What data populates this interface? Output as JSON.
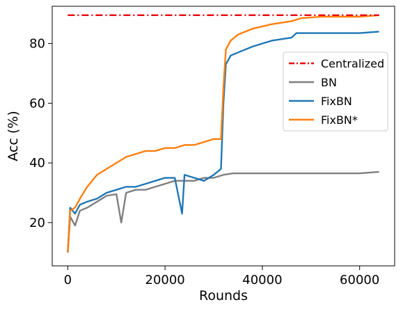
{
  "chart_data": {
    "type": "line",
    "xlabel": "Rounds",
    "ylabel": "Acc (%)",
    "xlim": [
      -3200,
      67200
    ],
    "ylim": [
      5.5,
      92.5
    ],
    "xticks": [
      0,
      20000,
      40000,
      60000
    ],
    "yticks": [
      20,
      40,
      60,
      80
    ],
    "grid": false,
    "legend_position": "center-right",
    "series": [
      {
        "name": "Centralized",
        "color": "#e8000b",
        "linestyle": "dashdot",
        "x": [
          0,
          64000
        ],
        "y": [
          89.5,
          89.5
        ]
      },
      {
        "name": "BN",
        "color": "#7f7f7f",
        "linestyle": "solid",
        "x": [
          0,
          500,
          1500,
          2500,
          4000,
          6000,
          8000,
          10000,
          11000,
          12000,
          14000,
          16000,
          18000,
          20000,
          22000,
          24000,
          26000,
          28000,
          30000,
          32000,
          34000,
          36000,
          38000,
          40000,
          44000,
          48000,
          52000,
          56000,
          60000,
          64000
        ],
        "y": [
          10,
          22,
          19,
          24,
          25,
          27,
          29,
          29.5,
          20,
          30,
          31,
          31,
          32,
          33,
          34,
          34,
          34,
          35,
          35,
          36,
          36.5,
          36.5,
          36.5,
          36.5,
          36.5,
          36.5,
          36.5,
          36.5,
          36.5,
          37
        ]
      },
      {
        "name": "FixBN",
        "color": "#1f77b4",
        "linestyle": "solid",
        "x": [
          0,
          500,
          1500,
          2500,
          4000,
          6000,
          8000,
          10000,
          12000,
          14000,
          16000,
          18000,
          20000,
          22000,
          23500,
          24000,
          26000,
          28000,
          30000,
          31500,
          32000,
          32500,
          33500,
          35000,
          38000,
          42000,
          46000,
          47000,
          50000,
          55000,
          60000,
          64000
        ],
        "y": [
          10,
          25,
          23,
          26,
          27,
          28,
          30,
          31,
          32,
          32,
          33,
          34,
          35,
          35,
          23,
          36,
          35,
          34,
          36,
          38,
          60,
          73,
          76,
          77,
          79,
          81,
          82,
          83.5,
          83.5,
          83.5,
          83.5,
          84
        ]
      },
      {
        "name": "FixBN*",
        "color": "#ff7f0e",
        "linestyle": "solid",
        "x": [
          0,
          500,
          1500,
          2500,
          4000,
          6000,
          8000,
          10000,
          12000,
          14000,
          16000,
          18000,
          20000,
          22000,
          24000,
          26000,
          28000,
          30000,
          31500,
          32000,
          32500,
          33500,
          35000,
          38000,
          42000,
          46000,
          48000,
          52000,
          56000,
          60000,
          64000
        ],
        "y": [
          10,
          24,
          25,
          28,
          32,
          36,
          38,
          40,
          42,
          43,
          44,
          44,
          45,
          45,
          46,
          46,
          47,
          48,
          48,
          65,
          78,
          81,
          83,
          85,
          86.5,
          87.5,
          88.5,
          89,
          89,
          89,
          89.5
        ]
      }
    ]
  }
}
